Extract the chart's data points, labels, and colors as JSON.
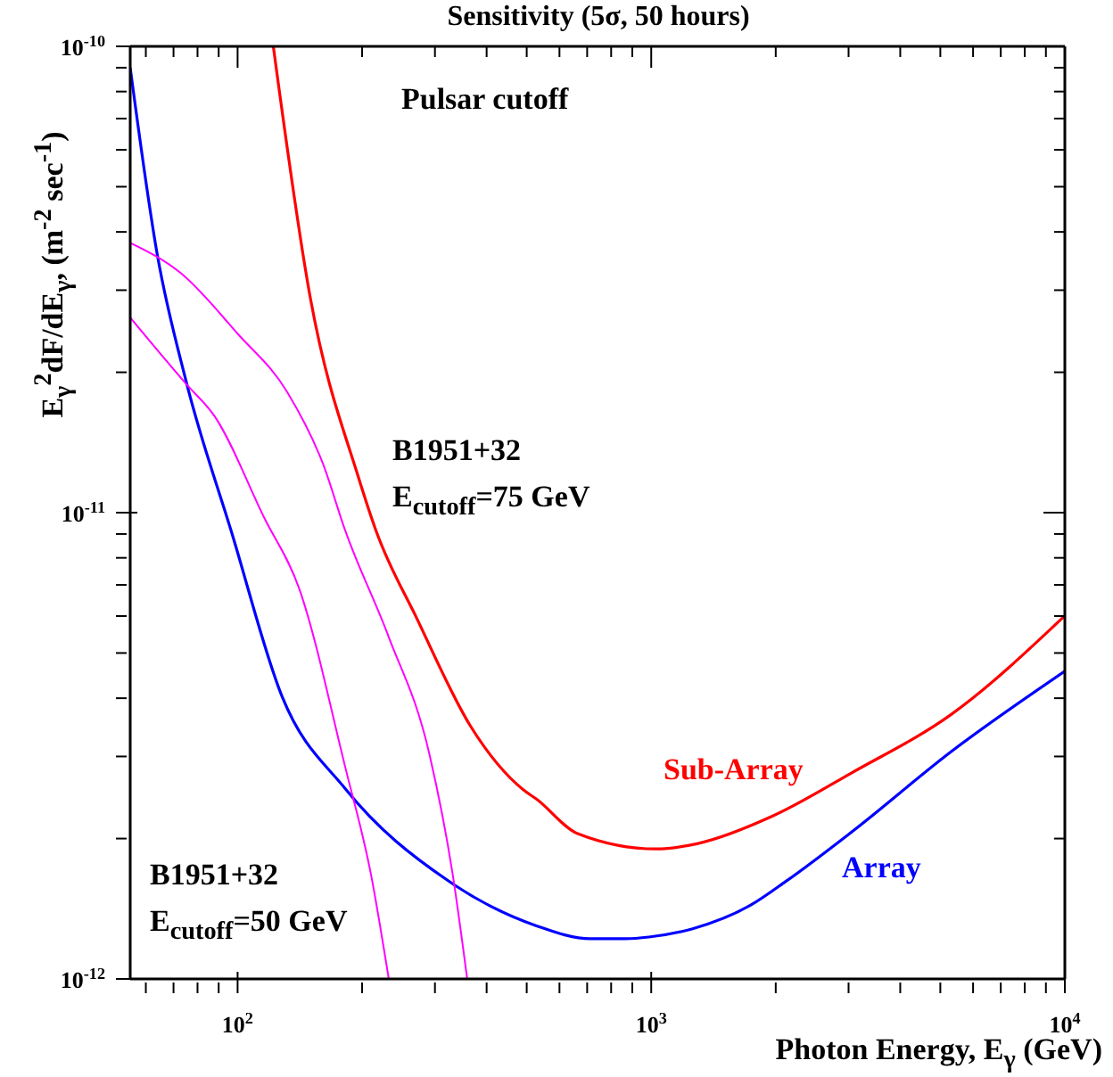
{
  "chart_data": {
    "type": "line",
    "title": "Sensitivity (5σ, 50 hours)",
    "xlabel": "Photon Energy, E$_{γ}$ (GeV)",
    "ylabel": "E$_{γ}$$^{2}$dF/dE$_{γ}$, (m$^{-2}$ sec$^{-1}$)",
    "log": "xy",
    "xlim": [
      55,
      10000
    ],
    "ylim": [
      1e-12,
      1e-10
    ],
    "xticks": [
      {
        "value": 60,
        "label": null
      },
      {
        "value": 70,
        "label": null
      },
      {
        "value": 80,
        "label": null
      },
      {
        "value": 90,
        "label": null
      },
      {
        "value": 100,
        "label": "10$^{2}$"
      },
      {
        "value": 200,
        "label": null
      },
      {
        "value": 300,
        "label": null
      },
      {
        "value": 400,
        "label": null
      },
      {
        "value": 500,
        "label": null
      },
      {
        "value": 600,
        "label": null
      },
      {
        "value": 700,
        "label": null
      },
      {
        "value": 800,
        "label": null
      },
      {
        "value": 900,
        "label": null
      },
      {
        "value": 1000,
        "label": "10$^{3}$"
      },
      {
        "value": 2000,
        "label": null
      },
      {
        "value": 3000,
        "label": null
      },
      {
        "value": 4000,
        "label": null
      },
      {
        "value": 5000,
        "label": null
      },
      {
        "value": 6000,
        "label": null
      },
      {
        "value": 7000,
        "label": null
      },
      {
        "value": 8000,
        "label": null
      },
      {
        "value": 9000,
        "label": null
      },
      {
        "value": 10000,
        "label": "10$^{4}$"
      }
    ],
    "yticks": [
      {
        "value": 1e-12,
        "label": "10$^{-12}$"
      },
      {
        "value": 2e-12,
        "label": null
      },
      {
        "value": 3e-12,
        "label": null
      },
      {
        "value": 4e-12,
        "label": null
      },
      {
        "value": 5e-12,
        "label": null
      },
      {
        "value": 6e-12,
        "label": null
      },
      {
        "value": 7e-12,
        "label": null
      },
      {
        "value": 8e-12,
        "label": null
      },
      {
        "value": 9e-12,
        "label": null
      },
      {
        "value": 1e-11,
        "label": "10$^{-11}$"
      },
      {
        "value": 2e-11,
        "label": null
      },
      {
        "value": 3e-11,
        "label": null
      },
      {
        "value": 4e-11,
        "label": null
      },
      {
        "value": 5e-11,
        "label": null
      },
      {
        "value": 6e-11,
        "label": null
      },
      {
        "value": 7e-11,
        "label": null
      },
      {
        "value": 8e-11,
        "label": null
      },
      {
        "value": 9e-11,
        "label": null
      },
      {
        "value": 1e-10,
        "label": "10$^{-10}$"
      }
    ],
    "annotations": [
      "Pulsar cutoff",
      "B1951+32",
      "E$_{cutoff}$=75 GeV",
      "B1951+32",
      "E$_{cutoff}$=50 GeV"
    ],
    "series": [
      {
        "name": "Array",
        "color": "#0000ff",
        "x": [
          55,
          64,
          75,
          97,
          128,
          182,
          321,
          528,
          711,
          868,
          987,
          1254,
          1740,
          2118,
          3060,
          5330,
          10000
        ],
        "values": [
          9e-11,
          3.56e-11,
          1.92e-11,
          9e-12,
          4.04e-12,
          2.56e-12,
          1.63e-12,
          1.3e-12,
          1.22e-12,
          1.22e-12,
          1.23e-12,
          1.28e-12,
          1.44e-12,
          1.62e-12,
          2.07e-12,
          3.08e-12,
          4.57e-12
        ]
      },
      {
        "name": "Sub-Array",
        "color": "#ff0000",
        "x": [
          122,
          150,
          196,
          216,
          272,
          366,
          492,
          528,
          664,
          1027,
          1290,
          1977,
          3060,
          5330,
          10000
        ],
        "values": [
          1e-10,
          2.88e-11,
          1.19e-11,
          9.16e-12,
          5.9e-12,
          3.48e-12,
          2.54e-12,
          2.43e-12,
          2.05e-12,
          1.9e-12,
          1.95e-12,
          2.24e-12,
          2.77e-12,
          3.7e-12,
          6.01e-12
        ]
      },
      {
        "color": "#ff00ff",
        "x": [
          55,
          73,
          100,
          132,
          161,
          182,
          232,
          291,
          331,
          359
        ],
        "values": [
          3.79e-11,
          3.26e-11,
          2.42e-11,
          1.81e-11,
          1.27e-11,
          9.16e-12,
          5.41e-12,
          3.03e-12,
          1.68e-12,
          1e-12
        ]
      },
      {
        "color": "#ff00ff",
        "x": [
          55,
          75,
          88,
          116,
          141,
          182,
          210,
          232
        ],
        "values": [
          2.62e-11,
          1.89e-11,
          1.61e-11,
          9.75e-12,
          6.86e-12,
          2.85e-12,
          1.68e-12,
          1e-12
        ]
      }
    ]
  }
}
